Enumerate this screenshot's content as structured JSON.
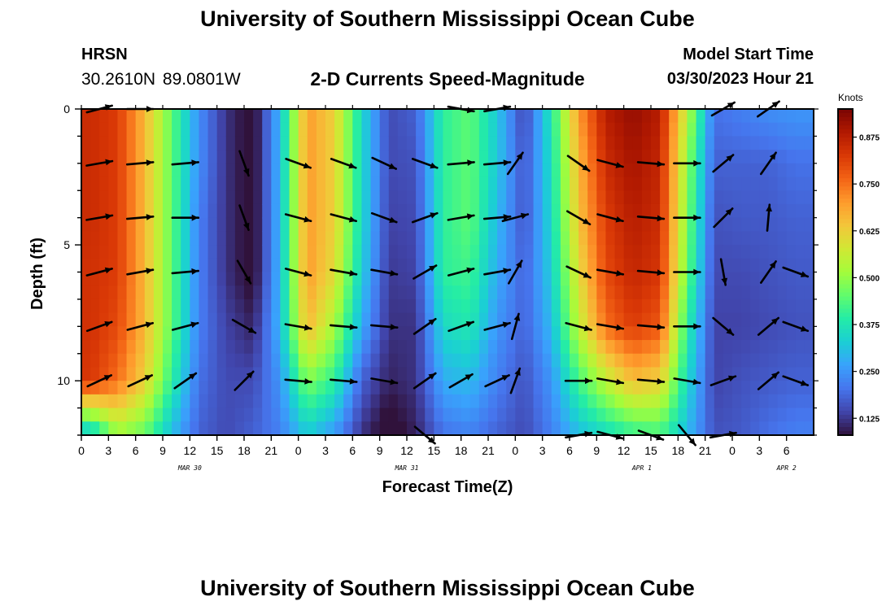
{
  "header": {
    "title": "University of Southern Mississippi Ocean Cube",
    "station": "HRSN",
    "coords": "30.2610N  89.0801W",
    "subtitle": "2-D Currents Speed-Magnitude",
    "model_start_label": "Model Start Time",
    "model_start_value": "03/30/2023 Hour 21"
  },
  "footer": {
    "title": "University of Southern Mississippi Ocean Cube"
  },
  "colors": {
    "colormap": [
      "#30123b",
      "#4145ab",
      "#4675ed",
      "#39a2fc",
      "#1bcfd4",
      "#24eca6",
      "#61fc6c",
      "#a4fc3b",
      "#d1e834",
      "#f3c63a",
      "#fe9b2d",
      "#f36315",
      "#d93806",
      "#b11901",
      "#7a0403"
    ],
    "arrow": "#000000"
  },
  "chart_data": {
    "type": "heatmap",
    "title": "2-D Currents Speed-Magnitude",
    "xlabel": "Forecast Time(Z)",
    "ylabel": "Depth (ft)",
    "colorbar_label": "Knots",
    "x_range_hours": [
      0,
      81
    ],
    "x_tick_labels": [
      "0",
      "3",
      "6",
      "9",
      "12",
      "15",
      "18",
      "21",
      "0",
      "3",
      "6",
      "9",
      "12",
      "15",
      "18",
      "21",
      "0",
      "3",
      "6",
      "9",
      "12",
      "15",
      "18",
      "21",
      "0",
      "3",
      "6"
    ],
    "date_labels": [
      {
        "text": "MAR 30",
        "hour": 12
      },
      {
        "text": "MAR 31",
        "hour": 36
      },
      {
        "text": "APR 1",
        "hour": 62
      },
      {
        "text": "APR 2",
        "hour": 78
      }
    ],
    "y_range": [
      0,
      12
    ],
    "y_tick_labels": [
      {
        "value": 0,
        "text": "0"
      },
      {
        "value": 5,
        "text": "5"
      },
      {
        "value": 10,
        "text": "10"
      }
    ],
    "colorbar": {
      "range": [
        0.08,
        0.95
      ],
      "ticks": [
        "0.125",
        "0.250",
        "0.375",
        "0.500",
        "0.625",
        "0.750",
        "0.875"
      ],
      "tick_values": [
        0.125,
        0.25,
        0.375,
        0.5,
        0.625,
        0.75,
        0.875
      ]
    },
    "hours": [
      1,
      4,
      7,
      10,
      13,
      16,
      19,
      22,
      25,
      28,
      31,
      34,
      37,
      40,
      43,
      46,
      49,
      52,
      55,
      58,
      61,
      64,
      67,
      70,
      73,
      76,
      79
    ],
    "depths": [
      0,
      2,
      4,
      6,
      8,
      10,
      12
    ],
    "speed": [
      [
        0.85,
        0.85,
        0.85,
        0.84,
        0.84,
        0.83,
        0.3
      ],
      [
        0.82,
        0.82,
        0.82,
        0.82,
        0.8,
        0.75,
        0.5
      ],
      [
        0.66,
        0.66,
        0.66,
        0.66,
        0.66,
        0.62,
        0.45
      ],
      [
        0.45,
        0.45,
        0.45,
        0.45,
        0.45,
        0.4,
        0.3
      ],
      [
        0.24,
        0.24,
        0.22,
        0.22,
        0.22,
        0.2,
        0.18
      ],
      [
        0.12,
        0.12,
        0.12,
        0.12,
        0.14,
        0.15,
        0.15
      ],
      [
        0.06,
        0.06,
        0.06,
        0.06,
        0.1,
        0.15,
        0.18
      ],
      [
        0.3,
        0.3,
        0.3,
        0.3,
        0.3,
        0.25,
        0.22
      ],
      [
        0.7,
        0.7,
        0.7,
        0.7,
        0.66,
        0.48,
        0.32
      ],
      [
        0.62,
        0.62,
        0.62,
        0.6,
        0.52,
        0.4,
        0.25
      ],
      [
        0.35,
        0.35,
        0.35,
        0.33,
        0.28,
        0.18,
        0.12
      ],
      [
        0.15,
        0.15,
        0.14,
        0.13,
        0.12,
        0.1,
        0.05
      ],
      [
        0.18,
        0.16,
        0.15,
        0.14,
        0.12,
        0.12,
        0.1
      ],
      [
        0.4,
        0.4,
        0.4,
        0.4,
        0.35,
        0.28,
        0.2
      ],
      [
        0.45,
        0.45,
        0.45,
        0.42,
        0.38,
        0.3,
        0.22
      ],
      [
        0.32,
        0.32,
        0.3,
        0.28,
        0.25,
        0.22,
        0.18
      ],
      [
        0.14,
        0.16,
        0.16,
        0.18,
        0.18,
        0.16,
        0.15
      ],
      [
        0.38,
        0.36,
        0.35,
        0.33,
        0.3,
        0.25,
        0.22
      ],
      [
        0.7,
        0.66,
        0.64,
        0.6,
        0.55,
        0.42,
        0.3
      ],
      [
        0.88,
        0.85,
        0.82,
        0.8,
        0.75,
        0.55,
        0.35
      ],
      [
        0.92,
        0.9,
        0.88,
        0.86,
        0.82,
        0.65,
        0.4
      ],
      [
        0.88,
        0.86,
        0.85,
        0.83,
        0.78,
        0.62,
        0.42
      ],
      [
        0.55,
        0.5,
        0.48,
        0.46,
        0.4,
        0.35,
        0.3
      ],
      [
        0.2,
        0.18,
        0.16,
        0.15,
        0.14,
        0.14,
        0.16
      ],
      [
        0.22,
        0.18,
        0.17,
        0.15,
        0.14,
        0.16,
        0.17
      ],
      [
        0.24,
        0.18,
        0.17,
        0.16,
        0.15,
        0.17,
        0.2
      ],
      [
        0.25,
        0.2,
        0.18,
        0.17,
        0.16,
        0.18,
        0.22
      ]
    ],
    "vector_hours": [
      2,
      6.5,
      11.5,
      18,
      24,
      29,
      33.5,
      38,
      42,
      46,
      48,
      55,
      58.5,
      63,
      67,
      71,
      73,
      76,
      79
    ],
    "vector_depths": [
      0,
      2,
      4,
      6,
      8,
      10,
      12
    ],
    "vector_angles_deg": [
      [
        15,
        10,
        10,
        15,
        20,
        25,
        null
      ],
      [
        0,
        5,
        5,
        10,
        15,
        25,
        null
      ],
      [
        null,
        5,
        0,
        5,
        15,
        35,
        null
      ],
      [
        null,
        -70,
        -70,
        -60,
        -30,
        45,
        null
      ],
      [
        null,
        -20,
        -15,
        -15,
        -10,
        -5,
        null
      ],
      [
        null,
        -20,
        -15,
        -10,
        -5,
        -5,
        null
      ],
      [
        null,
        -25,
        -20,
        -10,
        -5,
        -10,
        null
      ],
      [
        null,
        -20,
        20,
        30,
        35,
        35,
        -40
      ],
      [
        -10,
        5,
        10,
        15,
        20,
        30,
        null
      ],
      [
        10,
        5,
        5,
        10,
        15,
        25,
        null
      ],
      [
        null,
        55,
        15,
        60,
        75,
        70,
        null
      ],
      [
        null,
        -35,
        -30,
        -25,
        -15,
        0,
        10
      ],
      [
        null,
        -15,
        -15,
        -10,
        -10,
        -10,
        -15
      ],
      [
        null,
        -5,
        -5,
        -5,
        -5,
        -5,
        -20
      ],
      [
        null,
        0,
        0,
        0,
        0,
        -10,
        -50
      ],
      [
        30,
        40,
        45,
        -80,
        -40,
        20,
        10
      ],
      [
        null,
        null,
        null,
        null,
        null,
        null,
        null
      ],
      [
        35,
        55,
        85,
        55,
        40,
        40,
        null
      ],
      [
        null,
        null,
        null,
        -20,
        -20,
        -20,
        null
      ]
    ]
  }
}
